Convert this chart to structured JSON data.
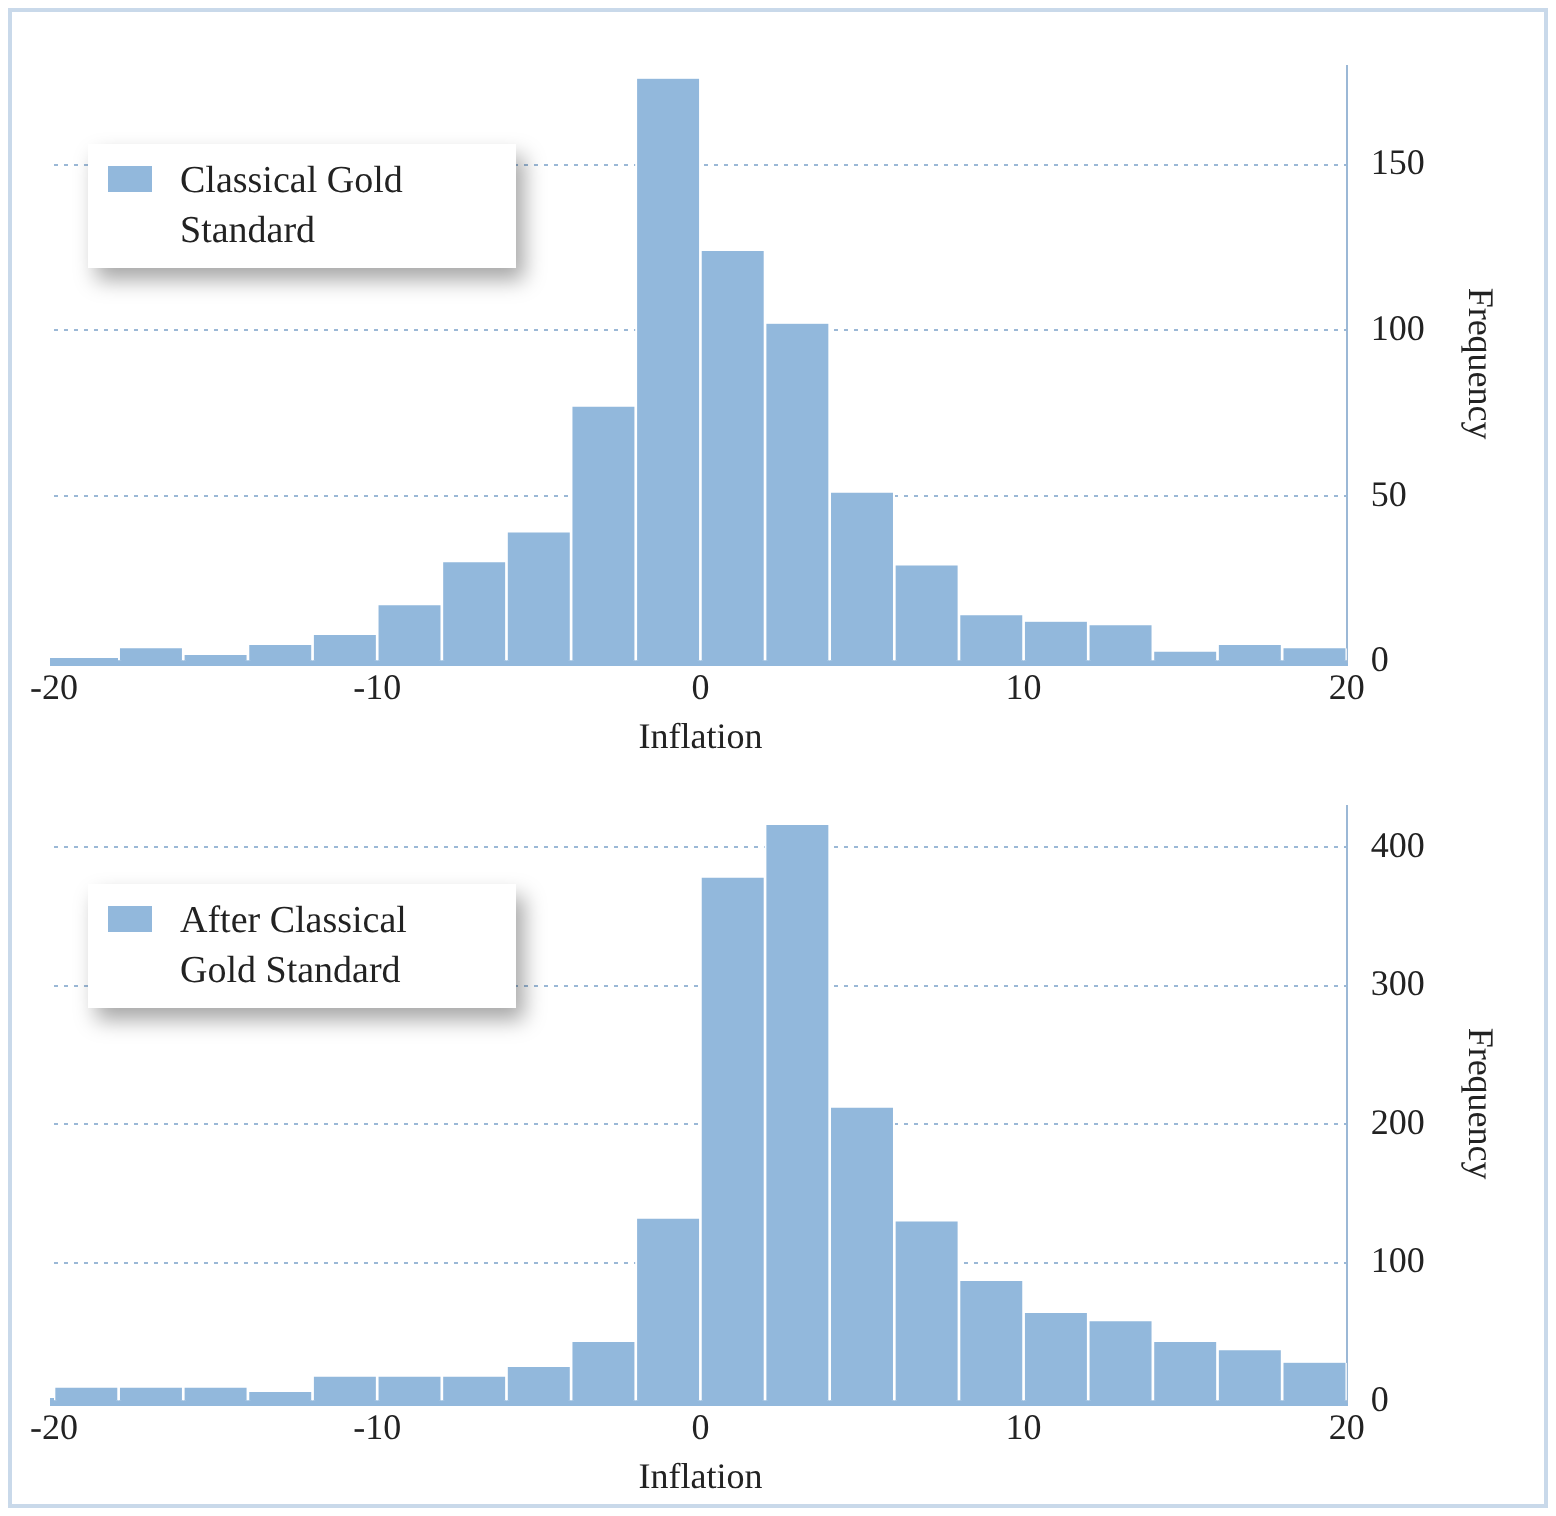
{
  "chart_data": [
    {
      "type": "histogram",
      "xlabel": "Inflation",
      "ylabel": "Frequency",
      "bins": [
        -20,
        -18,
        -16,
        -14,
        -12,
        -10,
        -8,
        -6,
        -4,
        -2,
        0,
        2,
        4,
        6,
        8,
        10,
        12,
        14,
        16,
        18,
        20
      ],
      "series": [
        {
          "name": "Classical Gold Standard",
          "color": "#92b8dc",
          "values": [
            0,
            4,
            2,
            5,
            8,
            17,
            30,
            39,
            77,
            176,
            124,
            102,
            51,
            29,
            14,
            12,
            11,
            3,
            5,
            4
          ]
        }
      ],
      "xlim": [
        -20,
        20
      ],
      "xticks": [
        -20,
        -10,
        0,
        10,
        20
      ],
      "ylim": [
        0,
        180
      ],
      "yticks": [
        0,
        50,
        100,
        150
      ],
      "grid": "y",
      "legend": "top left"
    },
    {
      "type": "histogram",
      "xlabel": "Inflation",
      "ylabel": "Frequency",
      "bins": [
        -20,
        -18,
        -16,
        -14,
        -12,
        -10,
        -8,
        -6,
        -4,
        -2,
        0,
        2,
        4,
        6,
        8,
        10,
        12,
        14,
        16,
        18,
        20
      ],
      "series": [
        {
          "name": "After Classical Gold Standard",
          "color": "#92b8dc",
          "values": [
            10,
            10,
            10,
            7,
            18,
            18,
            18,
            25,
            43,
            132,
            378,
            416,
            212,
            130,
            87,
            64,
            58,
            43,
            37,
            28
          ]
        }
      ],
      "xlim": [
        -20,
        20
      ],
      "xticks": [
        -20,
        -10,
        0,
        10,
        20
      ],
      "ylim": [
        0,
        430
      ],
      "yticks": [
        0,
        100,
        200,
        300,
        400
      ],
      "grid": "y",
      "legend": "top left"
    }
  ]
}
